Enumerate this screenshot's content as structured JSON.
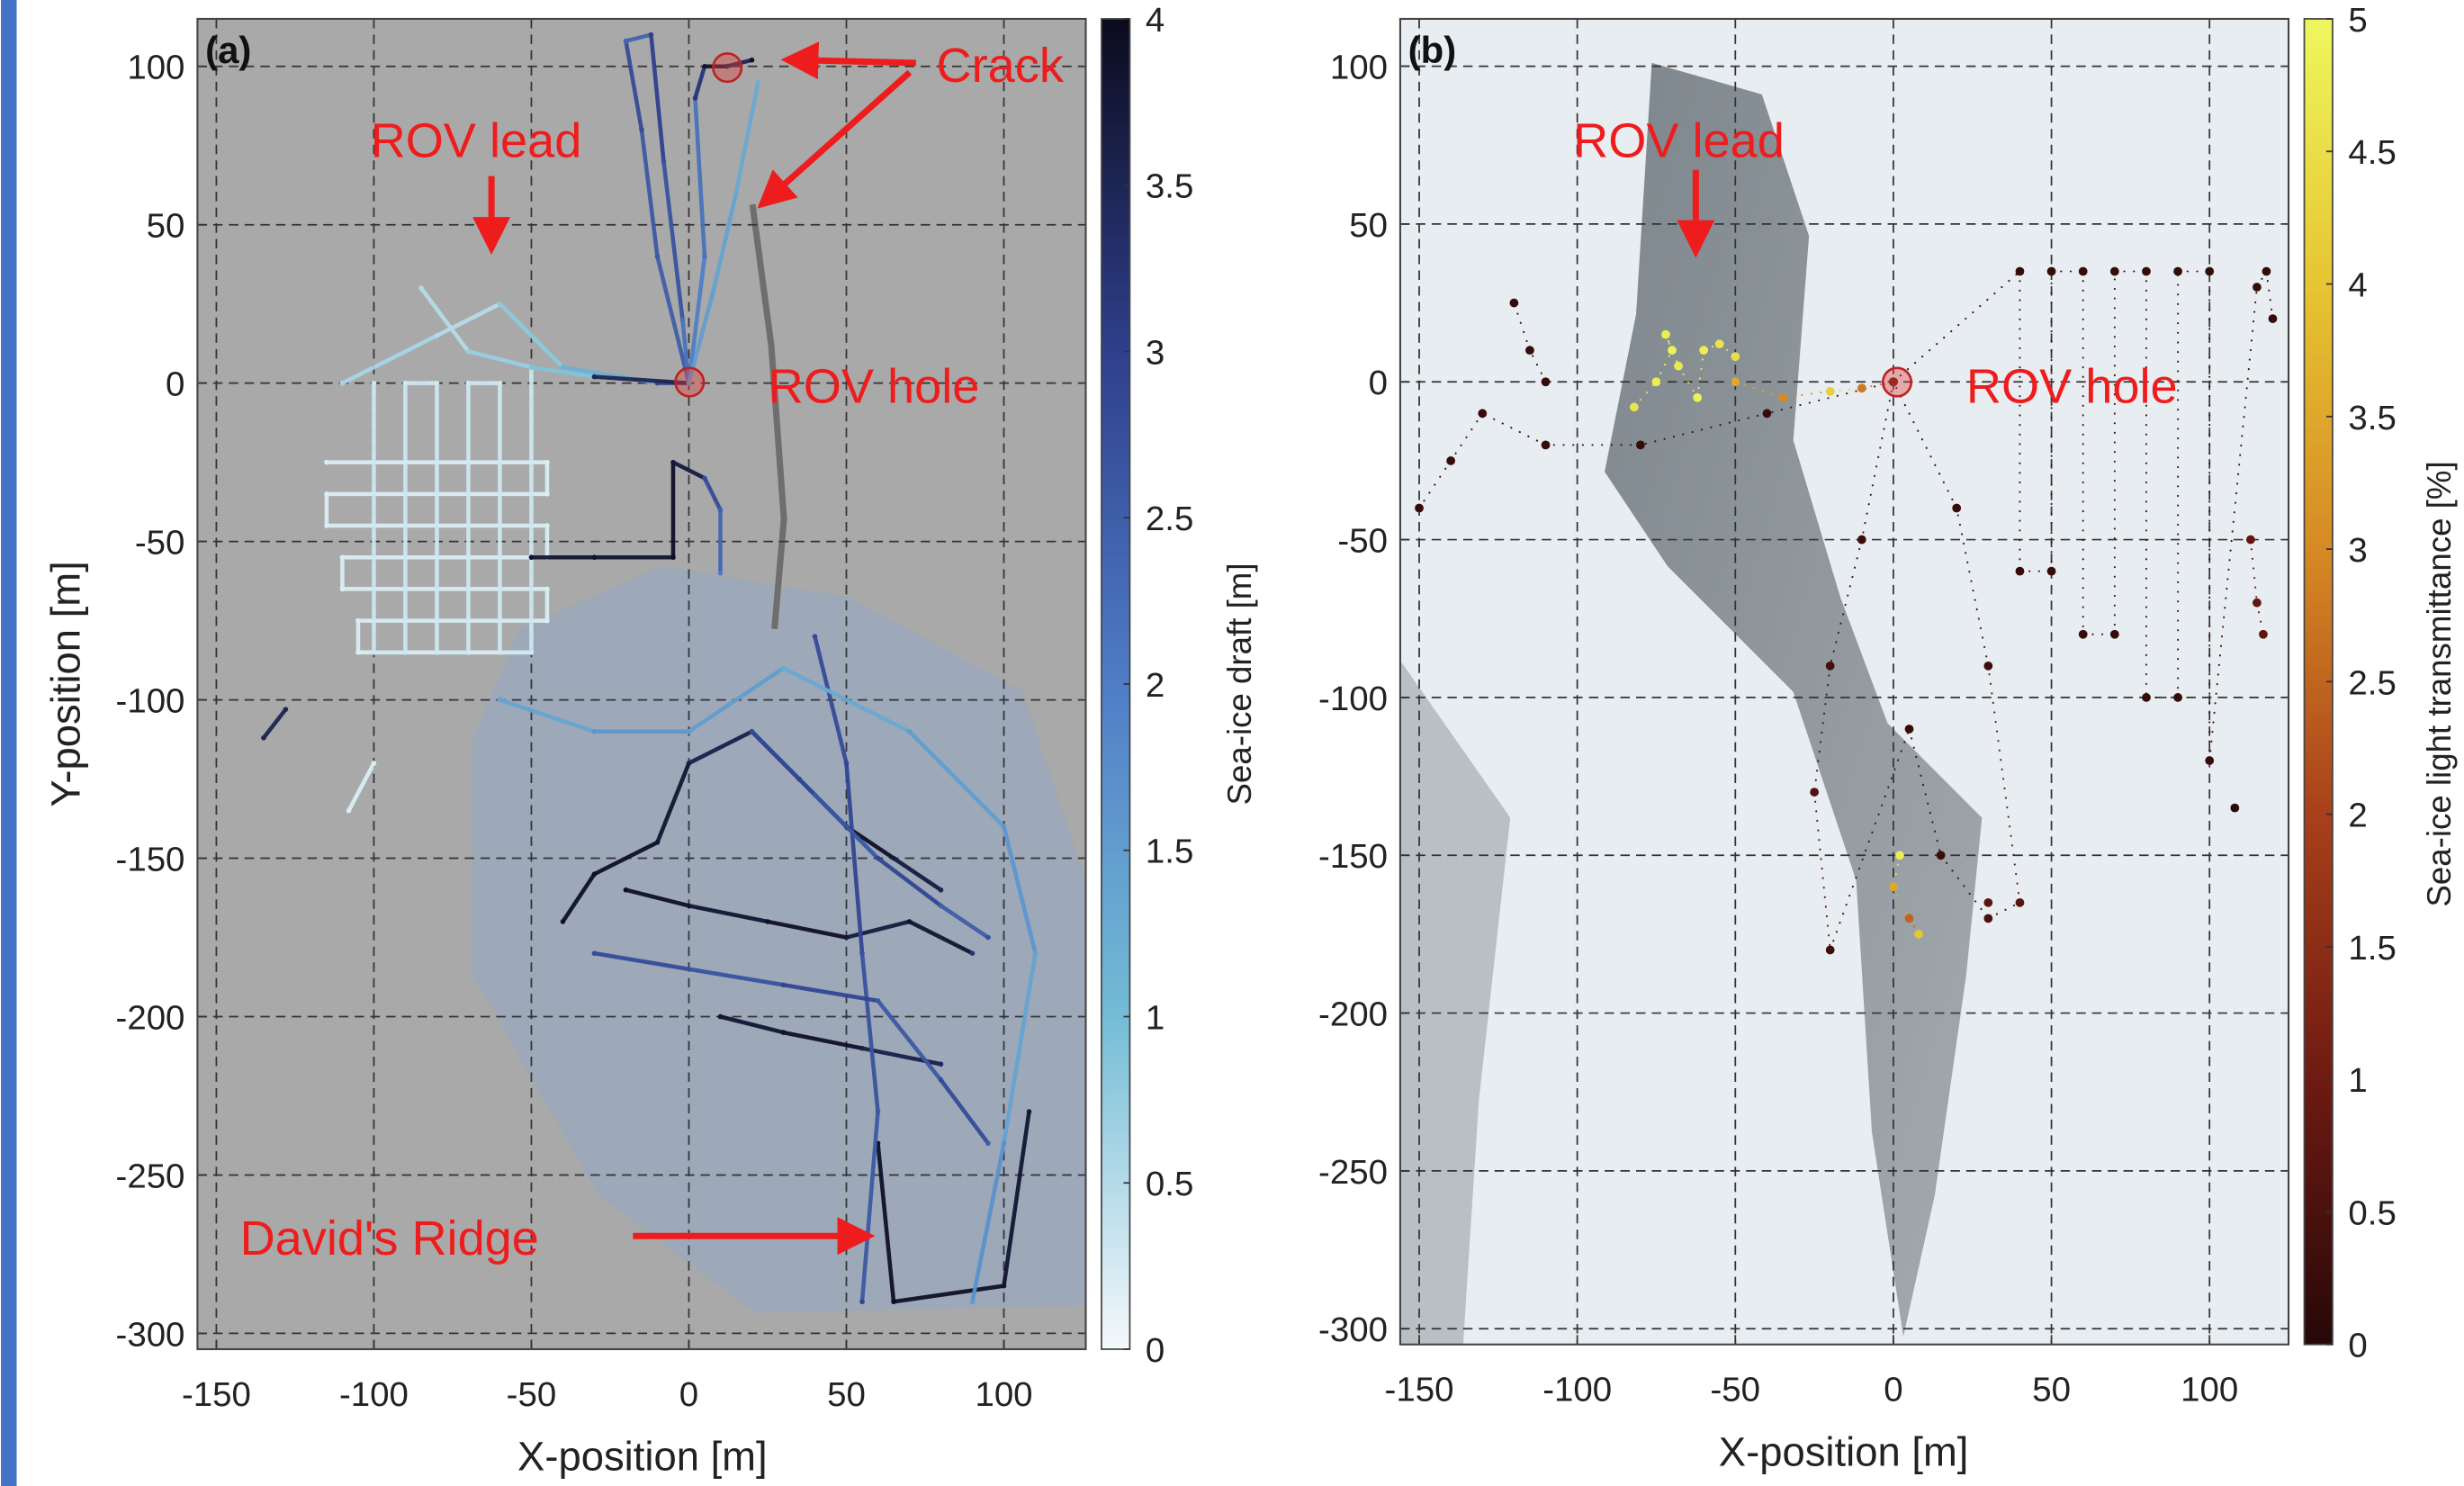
{
  "chart_data": [
    {
      "type": "scatter",
      "tag": "(a)",
      "xlabel": "X-position [m]",
      "ylabel": "Y-position [m]",
      "xlim": [
        -156,
        126
      ],
      "ylim": [
        -305,
        115
      ],
      "xticks": [
        -150,
        -100,
        -50,
        0,
        50,
        100
      ],
      "yticks": [
        -300,
        -250,
        -200,
        -150,
        -100,
        -50,
        0,
        50,
        100
      ],
      "grid": true,
      "colorbar": {
        "label": "Sea-ice draft [m]",
        "lim": [
          0,
          4
        ],
        "ticks": [
          0,
          0.5,
          1,
          1.5,
          2,
          2.5,
          3,
          3.5,
          4
        ],
        "colormap": [
          "#f4f9fb",
          "#74bcd6",
          "#4f7dc6",
          "#2f3f8c",
          "#0b0b1c"
        ]
      },
      "annotations": [
        "Crack",
        "ROV lead",
        "ROV hole",
        "David's Ridge"
      ],
      "series": [
        {
          "x": [
            -115,
            -45,
            -45,
            -115,
            -115,
            -45,
            -45,
            -110,
            -110,
            -45,
            -45,
            -105,
            -105,
            -50
          ],
          "y": [
            -25,
            -25,
            -35,
            -35,
            -45,
            -45,
            -55,
            -55,
            -65,
            -65,
            -75,
            -75,
            -85,
            -85
          ],
          "values": [
            0.2,
            0.2,
            0.2,
            0.2,
            0.2,
            0.2,
            0.2,
            0.2,
            0.2,
            0.2,
            0.2,
            0.2,
            0.2,
            0.2
          ]
        },
        {
          "x": [
            -100,
            -100,
            -90,
            -90,
            -80,
            -80,
            -70,
            -70,
            -60,
            -60,
            -50,
            -50
          ],
          "y": [
            0,
            -85,
            -85,
            0,
            0,
            -85,
            -85,
            0,
            0,
            -85,
            -85,
            5
          ],
          "values": [
            0.3,
            0.3,
            0.3,
            0.3,
            0.3,
            0.3,
            0.3,
            0.3,
            0.3,
            0.3,
            0.3,
            0.3
          ]
        },
        {
          "x": [
            -110,
            -80,
            -60,
            -40,
            -10,
            0
          ],
          "y": [
            0,
            15,
            25,
            5,
            0,
            0
          ],
          "values": [
            0.6,
            0.5,
            0.8,
            1.2,
            2.8,
            2
          ]
        },
        {
          "x": [
            -85,
            -70,
            -50,
            -30,
            0
          ],
          "y": [
            30,
            10,
            5,
            2,
            0
          ],
          "values": [
            0.5,
            0.7,
            0.9,
            3.5,
            1.5
          ]
        },
        {
          "x": [
            0,
            -10,
            -15,
            -20,
            -12,
            -8,
            -2,
            0
          ],
          "y": [
            0,
            40,
            80,
            108,
            110,
            70,
            20,
            0
          ],
          "values": [
            2.5,
            2.6,
            2.8,
            2.4,
            3,
            2.7,
            2.2,
            2
          ]
        },
        {
          "x": [
            0,
            5,
            2,
            5,
            12,
            20
          ],
          "y": [
            0,
            40,
            90,
            100,
            100,
            102
          ],
          "values": [
            2,
            2.2,
            3.2,
            3.8,
            3.5,
            3.9
          ]
        },
        {
          "x": [
            0,
            8,
            15,
            22
          ],
          "y": [
            0,
            30,
            60,
            95
          ],
          "values": [
            1.5,
            1.4,
            1.3,
            1.2
          ]
        },
        {
          "x": [
            -50,
            -30,
            -5,
            -5,
            5,
            10,
            10
          ],
          "y": [
            -55,
            -55,
            -55,
            -25,
            -30,
            -40,
            -60
          ],
          "values": [
            3.8,
            3.8,
            3.9,
            3.7,
            2.8,
            2.4,
            2
          ]
        },
        {
          "x": [
            -40,
            -30,
            -10,
            0,
            20,
            35,
            50,
            65,
            80
          ],
          "y": [
            -170,
            -155,
            -145,
            -120,
            -110,
            -125,
            -140,
            -150,
            -160
          ],
          "values": [
            3.9,
            3.9,
            3.8,
            3.6,
            3.9,
            3.8,
            3.9,
            3.7,
            3.5
          ]
        },
        {
          "x": [
            -20,
            0,
            25,
            50,
            70,
            90
          ],
          "y": [
            -160,
            -165,
            -170,
            -175,
            -170,
            -180
          ],
          "values": [
            3.9,
            3.8,
            3.9,
            3.7,
            3.8,
            3.2
          ]
        },
        {
          "x": [
            10,
            30,
            55,
            80
          ],
          "y": [
            -200,
            -205,
            -210,
            -215
          ],
          "values": [
            3.8,
            3.9,
            3.6,
            3.4
          ]
        },
        {
          "x": [
            60,
            65,
            100,
            108
          ],
          "y": [
            -240,
            -290,
            -285,
            -230
          ],
          "values": [
            3.9,
            3.9,
            3.8,
            3.7
          ]
        },
        {
          "x": [
            40,
            50,
            55,
            60,
            55
          ],
          "y": [
            -80,
            -120,
            -180,
            -230,
            -290
          ],
          "values": [
            2.8,
            2.9,
            2.7,
            2.6,
            2.9
          ]
        },
        {
          "x": [
            20,
            40,
            60,
            80,
            95
          ],
          "y": [
            -110,
            -130,
            -150,
            -165,
            -175
          ],
          "values": [
            2.8,
            2.6,
            2.9,
            2.5,
            2.7
          ]
        },
        {
          "x": [
            -30,
            0,
            30,
            60,
            80,
            95
          ],
          "y": [
            -180,
            -185,
            -190,
            -195,
            -220,
            -240
          ],
          "values": [
            2.8,
            2.7,
            2.9,
            2.6,
            2.8,
            2.5
          ]
        },
        {
          "x": [
            -60,
            -30,
            0,
            30,
            70,
            100,
            110,
            100,
            90
          ],
          "y": [
            -100,
            -110,
            -110,
            -90,
            -110,
            -140,
            -180,
            -240,
            -290
          ],
          "values": [
            1.4,
            1.6,
            1.5,
            1.3,
            1.5,
            1.6,
            1.4,
            1.7,
            1.5
          ]
        },
        {
          "x": [
            -135,
            -128
          ],
          "y": [
            -112,
            -103
          ],
          "values": [
            3.5,
            3.5
          ]
        },
        {
          "x": [
            -108,
            -100
          ],
          "y": [
            -135,
            -120
          ],
          "values": [
            0.2,
            0.2
          ]
        }
      ]
    },
    {
      "type": "scatter",
      "tag": "(b)",
      "xlabel": "X-position [m]",
      "xlim": [
        -156,
        125
      ],
      "ylim": [
        -305,
        115
      ],
      "xticks": [
        -150,
        -100,
        -50,
        0,
        50,
        100
      ],
      "yticks": [
        -300,
        -250,
        -200,
        -150,
        -100,
        -50,
        0,
        50,
        100
      ],
      "grid": true,
      "colorbar": {
        "label": "Sea-ice light transmittance [%]",
        "lim": [
          0,
          5
        ],
        "ticks": [
          0,
          0.5,
          1,
          1.5,
          2,
          2.5,
          3,
          3.5,
          4,
          4.5,
          5
        ],
        "colormap": [
          "#260808",
          "#6f1a12",
          "#a8401a",
          "#d68a24",
          "#e6c532",
          "#eef75e"
        ]
      },
      "annotations": [
        "ROV lead",
        "ROV hole"
      ],
      "series": [
        {
          "x": [
            0,
            40,
            40,
            50,
            50,
            60,
            60,
            70,
            70,
            80,
            80,
            90,
            90,
            100,
            100,
            115,
            118,
            120
          ],
          "y": [
            0,
            35,
            -60,
            -60,
            35,
            35,
            -80,
            -80,
            35,
            35,
            -100,
            -100,
            35,
            35,
            -120,
            30,
            35,
            20
          ],
          "values": [
            0.2,
            0.2,
            0.2,
            0.2,
            0.2,
            0.2,
            0.2,
            0.2,
            0.2,
            0.2,
            0.2,
            0.2,
            0.2,
            0.2,
            0.2,
            0.2,
            0.2,
            0.2
          ]
        },
        {
          "x": [
            0,
            -10,
            -20,
            -25,
            -20,
            5,
            15,
            30,
            40,
            30,
            20,
            0
          ],
          "y": [
            0,
            -50,
            -90,
            -130,
            -180,
            -110,
            -150,
            -170,
            -165,
            -90,
            -40,
            0
          ],
          "values": [
            0.2,
            0.3,
            0.4,
            0.6,
            0.3,
            0.2,
            0.3,
            0.5,
            0.7,
            0.3,
            0.2,
            0.2
          ]
        },
        {
          "x": [
            0,
            -40,
            -80,
            -110,
            -130,
            -140,
            -150
          ],
          "y": [
            0,
            -10,
            -20,
            -20,
            -10,
            -25,
            -40
          ],
          "values": [
            0.3,
            0.2,
            0.2,
            0.2,
            0.2,
            0.2,
            0.2
          ]
        },
        {
          "x": [
            -110,
            -115,
            -120
          ],
          "y": [
            0,
            10,
            25
          ],
          "values": [
            0.2,
            0.2,
            0.2
          ]
        },
        {
          "x": [
            -82,
            -75,
            -70,
            -72,
            -68,
            -62,
            -60,
            -55,
            -50
          ],
          "y": [
            -8,
            0,
            10,
            15,
            5,
            -5,
            10,
            12,
            8
          ],
          "values": [
            4.6,
            4.8,
            4.9,
            4.8,
            4.7,
            4.9,
            4.8,
            4.6,
            4.5
          ]
        },
        {
          "x": [
            -50,
            -35,
            -20,
            -10,
            0
          ],
          "y": [
            0,
            -5,
            -3,
            -2,
            0
          ],
          "values": [
            3.5,
            3,
            4.2,
            2.8,
            1
          ]
        },
        {
          "x": [
            2,
            0,
            5,
            8
          ],
          "y": [
            -150,
            -160,
            -170,
            -175
          ],
          "values": [
            4.8,
            3.5,
            2.5,
            4
          ]
        },
        {
          "x": [
            113,
            115,
            117
          ],
          "y": [
            -50,
            -70,
            -80
          ],
          "values": [
            0.8,
            0.8,
            0.8
          ]
        },
        {
          "x": [
            108
          ],
          "y": [
            -135
          ],
          "values": [
            0.1
          ]
        },
        {
          "x": [
            30
          ],
          "y": [
            -165
          ],
          "values": [
            0.7
          ]
        }
      ]
    }
  ]
}
